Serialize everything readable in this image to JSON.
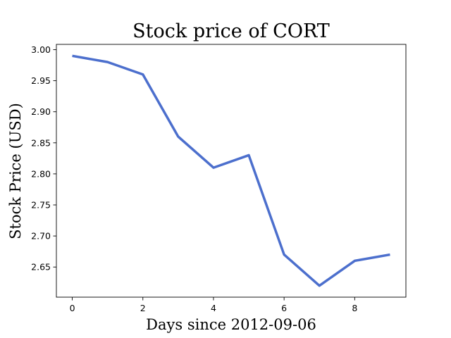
{
  "chart_data": {
    "type": "line",
    "title": "Stock price of CORT",
    "xlabel": "Days since 2012-09-06",
    "ylabel": "Stock Price (USD)",
    "x": [
      0,
      1,
      2,
      3,
      4,
      5,
      6,
      7,
      8,
      9
    ],
    "series": [
      {
        "values": [
          2.99,
          2.98,
          2.96,
          2.86,
          2.81,
          2.83,
          2.67,
          2.62,
          2.66,
          2.67
        ],
        "color": "#4c6fcd"
      }
    ],
    "xlim": [
      -0.45,
      9.45
    ],
    "ylim": [
      2.6015,
      3.0085
    ],
    "xticks": [
      0,
      2,
      4,
      6,
      8
    ],
    "xtick_labels": [
      "0",
      "2",
      "4",
      "6",
      "8"
    ],
    "yticks": [
      2.65,
      2.7,
      2.75,
      2.8,
      2.85,
      2.9,
      2.95,
      3.0
    ],
    "ytick_labels": [
      "2.65",
      "2.70",
      "2.75",
      "2.80",
      "2.85",
      "2.90",
      "2.95",
      "3.00"
    ],
    "grid": false,
    "legend": false
  }
}
